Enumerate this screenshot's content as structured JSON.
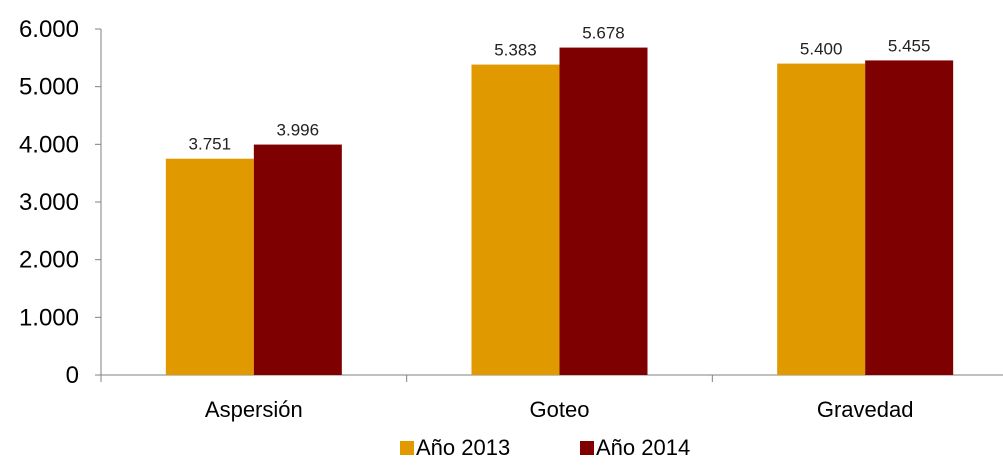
{
  "chart_data": {
    "type": "bar",
    "title": "",
    "xlabel": "",
    "ylabel": "",
    "categories": [
      "Aspersión",
      "Goteo",
      "Gravedad"
    ],
    "series": [
      {
        "name": "Año 2013",
        "values": [
          3751,
          5383,
          5400
        ],
        "labels": [
          "3.751",
          "5.383",
          "5.400"
        ],
        "color": "#E09A00"
      },
      {
        "name": "Año 2014",
        "values": [
          3996,
          5678,
          5455
        ],
        "labels": [
          "3.996",
          "5.678",
          "5.455"
        ],
        "color": "#7F0000"
      }
    ],
    "ylim": [
      0,
      6000
    ],
    "yticks": [
      0,
      1000,
      2000,
      3000,
      4000,
      5000,
      6000
    ],
    "ytick_labels": [
      "0",
      "1.000",
      "2.000",
      "3.000",
      "4.000",
      "5.000",
      "6.000"
    ],
    "grid": false,
    "legend": "bottom-center"
  }
}
